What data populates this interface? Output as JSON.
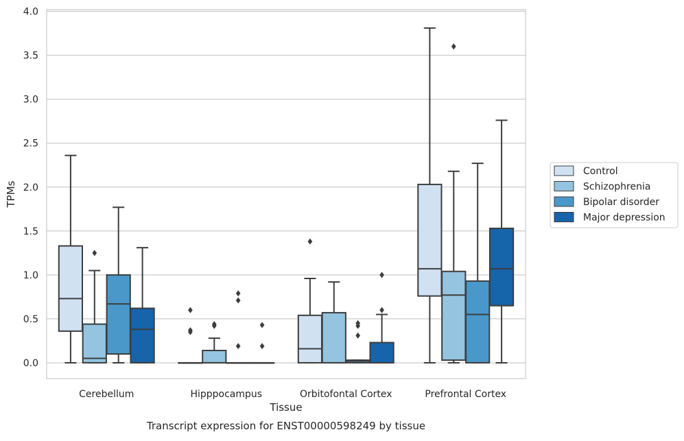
{
  "chart_data": {
    "type": "box",
    "xlabel": "Tissue",
    "ylabel": "TPMs",
    "caption": "Transcript expression for ENST00000598249 by tissue",
    "ylim": [
      -0.18,
      4.02
    ],
    "yticks": [
      0.0,
      0.5,
      1.0,
      1.5,
      2.0,
      2.5,
      3.0,
      3.5,
      4.0
    ],
    "ytick_labels": [
      "0.0",
      "0.5",
      "1.0",
      "1.5",
      "2.0",
      "2.5",
      "3.0",
      "3.5",
      "4.0"
    ],
    "grid": "horizontal",
    "legend_position": "right",
    "categories": [
      "Cerebellum",
      "Hipppocampus",
      "Orbitofontal Cortex",
      "Prefrontal Cortex"
    ],
    "series": [
      {
        "name": "Control",
        "color": "#d0e1f2"
      },
      {
        "name": "Schizophrenia",
        "color": "#94c4df"
      },
      {
        "name": "Bipolar disorder",
        "color": "#4a98c9"
      },
      {
        "name": "Major depression",
        "color": "#1764ab"
      }
    ],
    "boxes": [
      [
        {
          "whislo": 0.0,
          "q1": 0.36,
          "med": 0.73,
          "q3": 1.33,
          "whishi": 2.36,
          "fliers": []
        },
        {
          "whislo": 0.0,
          "q1": 0.0,
          "med": 0.05,
          "q3": 0.44,
          "whishi": 1.05,
          "fliers": [
            1.25
          ]
        },
        {
          "whislo": 0.0,
          "q1": 0.1,
          "med": 0.67,
          "q3": 1.0,
          "whishi": 1.77,
          "fliers": []
        },
        {
          "whislo": 0.0,
          "q1": 0.0,
          "med": 0.38,
          "q3": 0.62,
          "whishi": 1.31,
          "fliers": []
        }
      ],
      [
        {
          "whislo": 0.0,
          "q1": 0.0,
          "med": 0.0,
          "q3": 0.0,
          "whishi": 0.0,
          "fliers": [
            0.6,
            0.37,
            0.35
          ]
        },
        {
          "whislo": 0.0,
          "q1": 0.0,
          "med": 0.0,
          "q3": 0.14,
          "whishi": 0.28,
          "fliers": [
            0.44,
            0.42
          ]
        },
        {
          "whislo": 0.0,
          "q1": 0.0,
          "med": 0.0,
          "q3": 0.0,
          "whishi": 0.0,
          "fliers": [
            0.79,
            0.71,
            0.19
          ]
        },
        {
          "whislo": 0.0,
          "q1": 0.0,
          "med": 0.0,
          "q3": 0.0,
          "whishi": 0.0,
          "fliers": [
            0.43,
            0.19
          ]
        }
      ],
      [
        {
          "whislo": 0.0,
          "q1": 0.0,
          "med": 0.16,
          "q3": 0.54,
          "whishi": 0.96,
          "fliers": [
            1.38
          ]
        },
        {
          "whislo": 0.0,
          "q1": 0.0,
          "med": 0.0,
          "q3": 0.57,
          "whishi": 0.92,
          "fliers": []
        },
        {
          "whislo": 0.0,
          "q1": 0.0,
          "med": 0.02,
          "q3": 0.03,
          "whishi": 0.03,
          "fliers": [
            0.45,
            0.42,
            0.31
          ]
        },
        {
          "whislo": 0.0,
          "q1": 0.0,
          "med": 0.0,
          "q3": 0.23,
          "whishi": 0.55,
          "fliers": [
            1.0,
            0.6
          ]
        }
      ],
      [
        {
          "whislo": 0.0,
          "q1": 0.76,
          "med": 1.07,
          "q3": 2.03,
          "whishi": 3.81,
          "fliers": []
        },
        {
          "whislo": 0.0,
          "q1": 0.03,
          "med": 0.77,
          "q3": 1.04,
          "whishi": 2.18,
          "fliers": [
            3.6
          ]
        },
        {
          "whislo": 0.0,
          "q1": 0.0,
          "med": 0.55,
          "q3": 0.93,
          "whishi": 2.27,
          "fliers": []
        },
        {
          "whislo": 0.0,
          "q1": 0.65,
          "med": 1.07,
          "q3": 1.53,
          "whishi": 2.76,
          "fliers": []
        }
      ]
    ]
  }
}
